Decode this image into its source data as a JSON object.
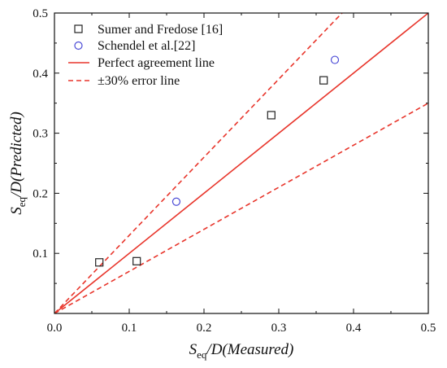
{
  "chart_data": {
    "type": "scatter",
    "xlim": [
      0,
      0.5
    ],
    "ylim": [
      0,
      0.5
    ],
    "xticks": [
      0.0,
      0.1,
      0.2,
      0.3,
      0.4,
      0.5
    ],
    "yticks": [
      0.1,
      0.2,
      0.3,
      0.4,
      0.5
    ],
    "x_tick_labels": [
      "0.0",
      "0.1",
      "0.2",
      "0.3",
      "0.4",
      "0.5"
    ],
    "y_tick_labels": [
      "0.1",
      "0.2",
      "0.3",
      "0.4",
      "0.5"
    ],
    "xlabel": {
      "main": "S",
      "sub": "eq",
      "rest": "/D(Measured)"
    },
    "ylabel": {
      "main": "S",
      "sub": "eq",
      "rest": "/D(Predicted)"
    },
    "grid": false,
    "legend_position": "top-left",
    "series": [
      {
        "name": "Sumer and Fredose [16]",
        "marker": "square",
        "color": "#222222",
        "points": [
          [
            0.06,
            0.085
          ],
          [
            0.11,
            0.087
          ],
          [
            0.29,
            0.33
          ],
          [
            0.36,
            0.388
          ]
        ]
      },
      {
        "name": "Schendel et al.[22]",
        "marker": "circle",
        "color": "#4b4bd6",
        "points": [
          [
            0.163,
            0.186
          ],
          [
            0.375,
            0.422
          ]
        ]
      }
    ],
    "lines": [
      {
        "name": "Perfect agreement line",
        "style": "solid",
        "color": "#e8352b",
        "slope": 1.0
      },
      {
        "name": "±30% error line",
        "style": "dashed",
        "color": "#e8352b",
        "slopes": [
          1.3,
          0.7
        ]
      }
    ]
  }
}
